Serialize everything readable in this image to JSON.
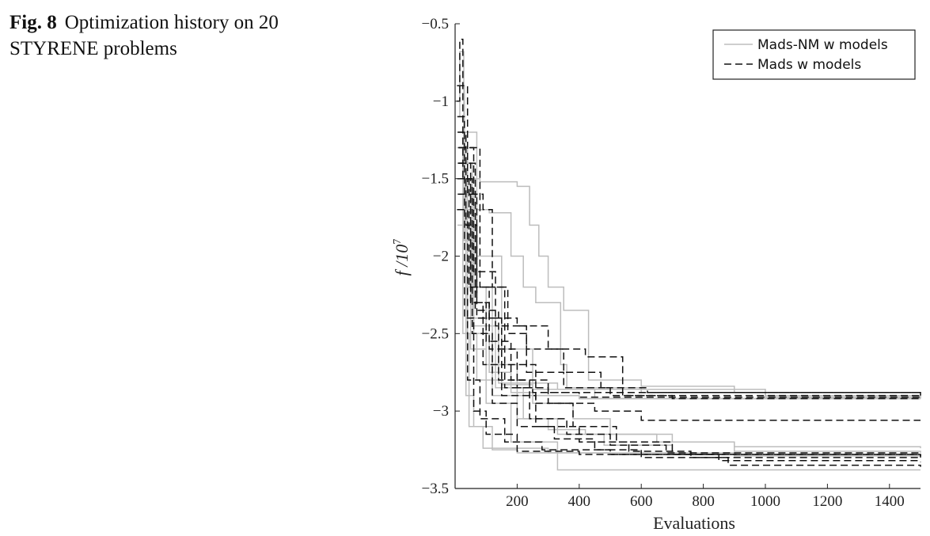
{
  "caption": {
    "number": "Fig. 8",
    "text": "Optimization history on 20 STYRENE problems"
  },
  "chart_data": {
    "type": "line",
    "title": "",
    "xlabel": "Evaluations",
    "ylabel_main": "f /10",
    "ylabel_exp": "7",
    "xlim": [
      0,
      1500
    ],
    "ylim": [
      -3.5,
      -0.5
    ],
    "xticks": [
      200,
      400,
      600,
      800,
      1000,
      1200,
      1400
    ],
    "yticks": [
      -3.5,
      -3,
      -2.5,
      -2,
      -1.5,
      -1,
      -0.5
    ],
    "ytick_labels": [
      "−3.5",
      "−3",
      "−2.5",
      "−2",
      "−1.5",
      "−1",
      "−0.5"
    ],
    "grid": false,
    "legend_position": "top-right",
    "legend": [
      {
        "label": "Mads-NM w models",
        "color": "#bdbdbd",
        "dash": "solid"
      },
      {
        "label": "Mads w models",
        "color": "#111111",
        "dash": "dashed"
      }
    ],
    "series": [
      {
        "group": "Mads-NM w models",
        "points": [
          [
            5,
            -1.1
          ],
          [
            15,
            -0.68
          ],
          [
            28,
            -1.9
          ],
          [
            60,
            -2.5
          ],
          [
            110,
            -2.75
          ],
          [
            180,
            -2.88
          ],
          [
            260,
            -2.9
          ],
          [
            400,
            -2.92
          ],
          [
            1500,
            -2.92
          ]
        ]
      },
      {
        "group": "Mads-NM w models",
        "points": [
          [
            8,
            -1.2
          ],
          [
            30,
            -1.9
          ],
          [
            60,
            -2.45
          ],
          [
            140,
            -2.82
          ],
          [
            330,
            -2.86
          ],
          [
            1000,
            -2.9
          ],
          [
            1500,
            -2.91
          ]
        ]
      },
      {
        "group": "Mads-NM w models",
        "points": [
          [
            10,
            -1.3
          ],
          [
            40,
            -1.5
          ],
          [
            80,
            -1.52
          ],
          [
            200,
            -1.55
          ],
          [
            240,
            -1.8
          ],
          [
            270,
            -2.0
          ],
          [
            300,
            -2.2
          ],
          [
            350,
            -2.35
          ],
          [
            430,
            -2.8
          ],
          [
            600,
            -2.84
          ],
          [
            900,
            -2.88
          ],
          [
            1000,
            -2.91
          ],
          [
            1500,
            -2.92
          ]
        ]
      },
      {
        "group": "Mads-NM w models",
        "points": [
          [
            6,
            -0.9
          ],
          [
            30,
            -1.7
          ],
          [
            110,
            -1.72
          ],
          [
            180,
            -2.0
          ],
          [
            220,
            -2.2
          ],
          [
            260,
            -2.3
          ],
          [
            340,
            -2.7
          ],
          [
            360,
            -2.85
          ],
          [
            600,
            -2.88
          ],
          [
            1000,
            -2.91
          ],
          [
            1500,
            -2.92
          ]
        ]
      },
      {
        "group": "Mads-NM w models",
        "points": [
          [
            8,
            -1.4
          ],
          [
            40,
            -2.5
          ],
          [
            70,
            -2.8
          ],
          [
            150,
            -2.83
          ],
          [
            250,
            -2.86
          ],
          [
            450,
            -2.92
          ],
          [
            1500,
            -2.92
          ]
        ]
      },
      {
        "group": "Mads-NM w models",
        "points": [
          [
            7,
            -1.6
          ],
          [
            35,
            -2.2
          ],
          [
            100,
            -2.7
          ],
          [
            200,
            -2.9
          ],
          [
            400,
            -2.92
          ],
          [
            1500,
            -2.92
          ]
        ]
      },
      {
        "group": "Mads-NM w models",
        "points": [
          [
            10,
            -1.5
          ],
          [
            35,
            -2.9
          ],
          [
            60,
            -3.1
          ],
          [
            120,
            -3.25
          ],
          [
            200,
            -3.27
          ],
          [
            500,
            -3.28
          ],
          [
            1500,
            -3.28
          ]
        ]
      },
      {
        "group": "Mads-NM w models",
        "points": [
          [
            6,
            -1.3
          ],
          [
            25,
            -2.5
          ],
          [
            45,
            -3.1
          ],
          [
            90,
            -3.24
          ],
          [
            300,
            -3.27
          ],
          [
            900,
            -3.29
          ],
          [
            1500,
            -3.29
          ]
        ]
      },
      {
        "group": "Mads-NM w models",
        "points": [
          [
            9,
            -1.6
          ],
          [
            60,
            -2.2
          ],
          [
            120,
            -2.9
          ],
          [
            200,
            -3.05
          ],
          [
            300,
            -3.12
          ],
          [
            420,
            -3.15
          ],
          [
            700,
            -3.2
          ],
          [
            900,
            -3.23
          ],
          [
            1500,
            -3.24
          ]
        ]
      },
      {
        "group": "Mads-NM w models",
        "points": [
          [
            12,
            -1.2
          ],
          [
            70,
            -2.0
          ],
          [
            150,
            -2.6
          ],
          [
            250,
            -2.95
          ],
          [
            380,
            -3.05
          ],
          [
            500,
            -3.15
          ],
          [
            650,
            -3.2
          ],
          [
            900,
            -3.26
          ],
          [
            1500,
            -3.27
          ]
        ]
      },
      {
        "group": "Mads-NM w models",
        "points": [
          [
            8,
            -1.8
          ],
          [
            50,
            -2.6
          ],
          [
            100,
            -2.95
          ],
          [
            180,
            -3.2
          ],
          [
            330,
            -3.38
          ],
          [
            1500,
            -3.38
          ]
        ]
      },
      {
        "group": "Mads-NM w models",
        "points": [
          [
            10,
            -1.4
          ],
          [
            55,
            -2.4
          ],
          [
            130,
            -2.85
          ],
          [
            220,
            -3.05
          ],
          [
            330,
            -3.15
          ],
          [
            480,
            -3.22
          ],
          [
            700,
            -3.28
          ],
          [
            1500,
            -3.3
          ]
        ]
      },
      {
        "group": "Mads w models",
        "points": [
          [
            5,
            -1.0
          ],
          [
            15,
            -0.6
          ],
          [
            25,
            -1.5
          ],
          [
            50,
            -2.3
          ],
          [
            90,
            -2.7
          ],
          [
            160,
            -2.85
          ],
          [
            250,
            -2.88
          ],
          [
            400,
            -2.91
          ],
          [
            1500,
            -2.91
          ]
        ]
      },
      {
        "group": "Mads w models",
        "points": [
          [
            8,
            -1.2
          ],
          [
            35,
            -1.8
          ],
          [
            70,
            -2.3
          ],
          [
            110,
            -2.4
          ],
          [
            200,
            -2.45
          ],
          [
            300,
            -2.6
          ],
          [
            420,
            -2.65
          ],
          [
            540,
            -2.9
          ],
          [
            700,
            -2.92
          ],
          [
            1500,
            -2.92
          ]
        ]
      },
      {
        "group": "Mads w models",
        "points": [
          [
            6,
            -0.9
          ],
          [
            40,
            -1.6
          ],
          [
            90,
            -1.7
          ],
          [
            120,
            -2.2
          ],
          [
            170,
            -2.5
          ],
          [
            230,
            -2.75
          ],
          [
            350,
            -2.85
          ],
          [
            500,
            -2.9
          ],
          [
            1500,
            -2.91
          ]
        ]
      },
      {
        "group": "Mads w models",
        "points": [
          [
            9,
            -1.4
          ],
          [
            50,
            -2.3
          ],
          [
            100,
            -2.55
          ],
          [
            180,
            -2.8
          ],
          [
            300,
            -2.88
          ],
          [
            1500,
            -2.9
          ]
        ]
      },
      {
        "group": "Mads w models",
        "points": [
          [
            10,
            -1.3
          ],
          [
            60,
            -2.1
          ],
          [
            130,
            -2.45
          ],
          [
            230,
            -2.6
          ],
          [
            350,
            -2.75
          ],
          [
            470,
            -2.85
          ],
          [
            620,
            -2.88
          ],
          [
            1500,
            -2.9
          ]
        ]
      },
      {
        "group": "Mads w models",
        "points": [
          [
            7,
            -1.5
          ],
          [
            45,
            -2.2
          ],
          [
            110,
            -2.6
          ],
          [
            200,
            -2.85
          ],
          [
            300,
            -2.95
          ],
          [
            450,
            -3.0
          ],
          [
            600,
            -3.06
          ],
          [
            1500,
            -3.06
          ]
        ]
      },
      {
        "group": "Mads w models",
        "points": [
          [
            8,
            -1.1
          ],
          [
            30,
            -2.4
          ],
          [
            60,
            -3.0
          ],
          [
            100,
            -3.15
          ],
          [
            200,
            -3.26
          ],
          [
            400,
            -3.28
          ],
          [
            1500,
            -3.29
          ]
        ]
      },
      {
        "group": "Mads w models",
        "points": [
          [
            10,
            -1.5
          ],
          [
            55,
            -2.5
          ],
          [
            120,
            -2.95
          ],
          [
            200,
            -3.1
          ],
          [
            320,
            -3.18
          ],
          [
            450,
            -3.25
          ],
          [
            600,
            -3.3
          ],
          [
            1500,
            -3.31
          ]
        ]
      },
      {
        "group": "Mads w models",
        "points": [
          [
            6,
            -1.7
          ],
          [
            40,
            -2.8
          ],
          [
            80,
            -3.05
          ],
          [
            160,
            -3.2
          ],
          [
            280,
            -3.25
          ],
          [
            500,
            -3.28
          ],
          [
            1500,
            -3.3
          ]
        ]
      },
      {
        "group": "Mads w models",
        "points": [
          [
            12,
            -1.3
          ],
          [
            80,
            -2.2
          ],
          [
            160,
            -2.7
          ],
          [
            260,
            -2.95
          ],
          [
            380,
            -3.1
          ],
          [
            520,
            -3.2
          ],
          [
            700,
            -3.28
          ],
          [
            850,
            -3.32
          ],
          [
            1500,
            -3.33
          ]
        ]
      },
      {
        "group": "Mads w models",
        "points": [
          [
            9,
            -1.6
          ],
          [
            70,
            -2.4
          ],
          [
            150,
            -2.9
          ],
          [
            260,
            -3.1
          ],
          [
            400,
            -3.2
          ],
          [
            560,
            -3.26
          ],
          [
            760,
            -3.3
          ],
          [
            880,
            -3.35
          ],
          [
            1500,
            -3.36
          ]
        ]
      },
      {
        "group": "Mads w models",
        "points": [
          [
            11,
            -1.4
          ],
          [
            65,
            -2.35
          ],
          [
            140,
            -2.8
          ],
          [
            240,
            -3.05
          ],
          [
            360,
            -3.15
          ],
          [
            500,
            -3.22
          ],
          [
            680,
            -3.27
          ],
          [
            1500,
            -3.29
          ]
        ]
      }
    ]
  }
}
